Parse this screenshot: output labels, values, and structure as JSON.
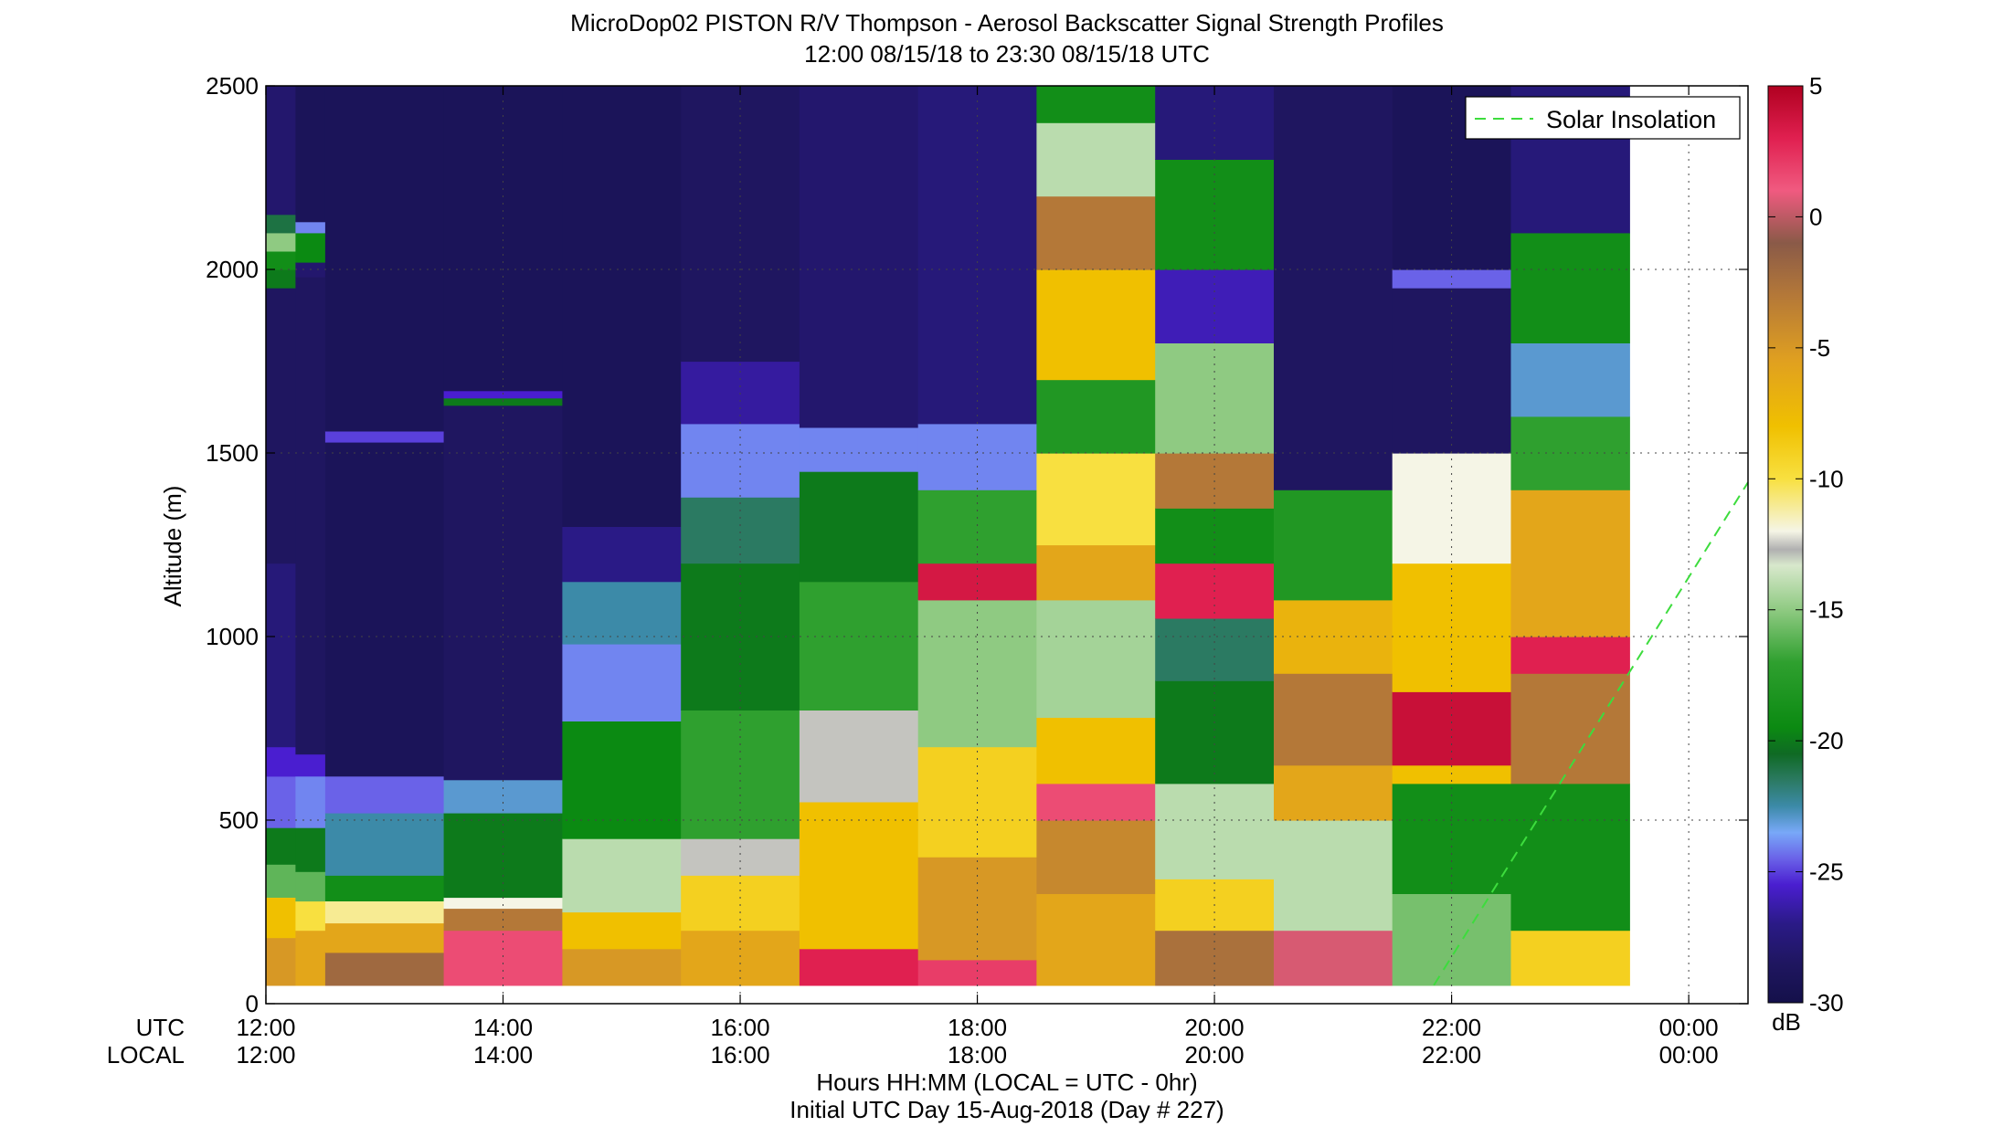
{
  "chart_data": {
    "type": "heatmap",
    "title": "MicroDop02 PISTON R/V Thompson - Aerosol Backscatter Signal Strength Profiles",
    "subtitle": "12:00 08/15/18 to 23:30 08/15/18  UTC",
    "ylabel": "Altitude (m)",
    "xlabel": "Hours HH:MM  (LOCAL = UTC - 0hr)",
    "xlabel2": "Initial UTC Day 15-Aug-2018 (Day # 227)",
    "x_row_labels": [
      "UTC",
      "LOCAL"
    ],
    "xlim": [
      12,
      24.5
    ],
    "ylim": [
      0,
      2500
    ],
    "grid": true,
    "x_ticks": [
      {
        "x": 12,
        "utc": "12:00",
        "local": "12:00"
      },
      {
        "x": 14,
        "utc": "14:00",
        "local": "14:00"
      },
      {
        "x": 16,
        "utc": "16:00",
        "local": "16:00"
      },
      {
        "x": 18,
        "utc": "18:00",
        "local": "18:00"
      },
      {
        "x": 20,
        "utc": "20:00",
        "local": "20:00"
      },
      {
        "x": 22,
        "utc": "22:00",
        "local": "22:00"
      },
      {
        "x": 24,
        "utc": "00:00",
        "local": "00:00"
      }
    ],
    "y_ticks": [
      0,
      500,
      1000,
      1500,
      2000,
      2500
    ],
    "colorbar": {
      "label": "dB",
      "range": [
        -30,
        5
      ],
      "ticks": [
        5,
        0,
        -5,
        -10,
        -15,
        -20,
        -25,
        -30
      ],
      "stops": [
        {
          "v": -30,
          "c": "#14104a"
        },
        {
          "v": -28.5,
          "c": "#1f1660"
        },
        {
          "v": -27,
          "c": "#2a1a86"
        },
        {
          "v": -25.5,
          "c": "#4a1ed0"
        },
        {
          "v": -24.5,
          "c": "#6a62e8"
        },
        {
          "v": -23.5,
          "c": "#78a8f8"
        },
        {
          "v": -22.5,
          "c": "#3c8aa8"
        },
        {
          "v": -21.5,
          "c": "#2b7a62"
        },
        {
          "v": -20.5,
          "c": "#0f6a24"
        },
        {
          "v": -19.5,
          "c": "#0b8a12"
        },
        {
          "v": -17,
          "c": "#2fa02f"
        },
        {
          "v": -15,
          "c": "#8fca82"
        },
        {
          "v": -13.3,
          "c": "#d8e8cc"
        },
        {
          "v": -12.7,
          "c": "#b0b0b0"
        },
        {
          "v": -12,
          "c": "#f5f5e6"
        },
        {
          "v": -10,
          "c": "#f8e040"
        },
        {
          "v": -8,
          "c": "#f0c000"
        },
        {
          "v": -5.5,
          "c": "#e0a020"
        },
        {
          "v": -3,
          "c": "#b47838"
        },
        {
          "v": -1,
          "c": "#8a5a48"
        },
        {
          "v": 1,
          "c": "#f05a80"
        },
        {
          "v": 3,
          "c": "#e02050"
        },
        {
          "v": 5,
          "c": "#b00020"
        }
      ]
    },
    "legend": {
      "label": "Solar Insolation",
      "position": "top-right",
      "color": "#3ddc3d"
    },
    "solar_insolation_line": [
      {
        "x": 21.85,
        "y": 50
      },
      {
        "x": 24.5,
        "y": 1420
      }
    ],
    "heatmap_columns": [
      {
        "t0": 12.0,
        "t1": 12.25,
        "segments": [
          [
            50,
            180,
            -5
          ],
          [
            180,
            290,
            -8
          ],
          [
            290,
            380,
            -16
          ],
          [
            380,
            480,
            -20
          ],
          [
            480,
            620,
            -24.5
          ],
          [
            620,
            700,
            -25.5
          ],
          [
            700,
            1200,
            -27.5
          ],
          [
            1200,
            1950,
            -28.5
          ],
          [
            1950,
            2000,
            -20
          ],
          [
            2000,
            2050,
            -19
          ],
          [
            2050,
            2100,
            -15
          ],
          [
            2100,
            2150,
            -21
          ],
          [
            2150,
            2500,
            -28
          ]
        ]
      },
      {
        "t0": 12.25,
        "t1": 12.5,
        "segments": [
          [
            50,
            200,
            -6
          ],
          [
            200,
            280,
            -10
          ],
          [
            280,
            360,
            -16
          ],
          [
            360,
            480,
            -20
          ],
          [
            480,
            620,
            -24
          ],
          [
            620,
            680,
            -25.5
          ],
          [
            680,
            1980,
            -28.5
          ],
          [
            1980,
            2020,
            -28
          ],
          [
            2020,
            2100,
            -19.5
          ],
          [
            2100,
            2130,
            -24
          ],
          [
            2130,
            2500,
            -29
          ]
        ]
      },
      {
        "t0": 12.5,
        "t1": 13.5,
        "segments": [
          [
            50,
            140,
            -2
          ],
          [
            140,
            220,
            -6
          ],
          [
            220,
            280,
            -11
          ],
          [
            280,
            350,
            -19
          ],
          [
            350,
            520,
            -22.5
          ],
          [
            520,
            620,
            -24.5
          ],
          [
            620,
            1530,
            -29
          ],
          [
            1530,
            1560,
            -25
          ],
          [
            1560,
            2500,
            -29
          ]
        ]
      },
      {
        "t0": 13.5,
        "t1": 14.5,
        "segments": [
          [
            50,
            200,
            1.5
          ],
          [
            200,
            260,
            -3
          ],
          [
            260,
            290,
            -12
          ],
          [
            290,
            520,
            -20
          ],
          [
            520,
            610,
            -23
          ],
          [
            610,
            1630,
            -28.5
          ],
          [
            1630,
            1650,
            -20
          ],
          [
            1650,
            1670,
            -25.5
          ],
          [
            1670,
            2500,
            -29
          ]
        ]
      },
      {
        "t0": 14.5,
        "t1": 15.5,
        "segments": [
          [
            50,
            150,
            -5
          ],
          [
            150,
            250,
            -8
          ],
          [
            250,
            450,
            -14
          ],
          [
            450,
            770,
            -19.5
          ],
          [
            770,
            980,
            -24
          ],
          [
            980,
            1150,
            -22.5
          ],
          [
            1150,
            1300,
            -27
          ],
          [
            1300,
            2500,
            -29
          ]
        ]
      },
      {
        "t0": 15.5,
        "t1": 16.5,
        "segments": [
          [
            50,
            200,
            -6
          ],
          [
            200,
            350,
            -9
          ],
          [
            350,
            450,
            -12.5
          ],
          [
            450,
            800,
            -17
          ],
          [
            800,
            1200,
            -20
          ],
          [
            1200,
            1380,
            -21.5
          ],
          [
            1380,
            1580,
            -24
          ],
          [
            1580,
            1750,
            -26.5
          ],
          [
            1750,
            2500,
            -28.5
          ]
        ]
      },
      {
        "t0": 16.5,
        "t1": 17.5,
        "segments": [
          [
            50,
            150,
            3
          ],
          [
            150,
            550,
            -8
          ],
          [
            550,
            800,
            -12.5
          ],
          [
            800,
            1150,
            -17
          ],
          [
            1150,
            1450,
            -20
          ],
          [
            1450,
            1570,
            -24
          ],
          [
            1570,
            2500,
            -28
          ]
        ]
      },
      {
        "t0": 17.5,
        "t1": 18.5,
        "segments": [
          [
            50,
            120,
            2
          ],
          [
            120,
            400,
            -5
          ],
          [
            400,
            700,
            -9
          ],
          [
            700,
            1100,
            -15
          ],
          [
            1100,
            1200,
            3.5
          ],
          [
            1200,
            1400,
            -17
          ],
          [
            1400,
            1580,
            -24
          ],
          [
            1580,
            2500,
            -27.5
          ]
        ]
      },
      {
        "t0": 18.5,
        "t1": 19.5,
        "segments": [
          [
            50,
            300,
            -6
          ],
          [
            300,
            500,
            -4
          ],
          [
            500,
            600,
            1.5
          ],
          [
            600,
            780,
            -8
          ],
          [
            780,
            1100,
            -14.5
          ],
          [
            1100,
            1250,
            -6
          ],
          [
            1250,
            1500,
            -10
          ],
          [
            1500,
            1700,
            -18
          ],
          [
            1700,
            2000,
            -8
          ],
          [
            2000,
            2200,
            -3
          ],
          [
            2200,
            2400,
            -14
          ],
          [
            2400,
            2500,
            -19
          ]
        ]
      },
      {
        "t0": 19.5,
        "t1": 20.5,
        "segments": [
          [
            50,
            200,
            -2.5
          ],
          [
            200,
            340,
            -9
          ],
          [
            340,
            600,
            -14
          ],
          [
            600,
            880,
            -20
          ],
          [
            880,
            1050,
            -21.5
          ],
          [
            1050,
            1200,
            3
          ],
          [
            1200,
            1350,
            -19
          ],
          [
            1350,
            1500,
            -3
          ],
          [
            1500,
            1800,
            -15
          ],
          [
            1800,
            2000,
            -26
          ],
          [
            2000,
            2300,
            -19
          ],
          [
            2300,
            2500,
            -27.5
          ]
        ]
      },
      {
        "t0": 20.5,
        "t1": 21.5,
        "segments": [
          [
            50,
            200,
            0.5
          ],
          [
            200,
            500,
            -14
          ],
          [
            500,
            650,
            -6
          ],
          [
            650,
            900,
            -3
          ],
          [
            900,
            1100,
            -7
          ],
          [
            1100,
            1400,
            -18
          ],
          [
            1400,
            2500,
            -28.5
          ]
        ]
      },
      {
        "t0": 21.5,
        "t1": 22.5,
        "segments": [
          [
            50,
            300,
            -15.5
          ],
          [
            300,
            600,
            -19
          ],
          [
            600,
            650,
            -8
          ],
          [
            650,
            850,
            4
          ],
          [
            850,
            1200,
            -8
          ],
          [
            1200,
            1500,
            -12
          ],
          [
            1500,
            1950,
            -28.5
          ],
          [
            1950,
            2000,
            -24.5
          ],
          [
            2000,
            2500,
            -29
          ]
        ]
      },
      {
        "t0": 22.5,
        "t1": 23.5,
        "segments": [
          [
            50,
            200,
            -9
          ],
          [
            200,
            600,
            -19
          ],
          [
            600,
            900,
            -3
          ],
          [
            900,
            1000,
            3
          ],
          [
            1000,
            1400,
            -6
          ],
          [
            1400,
            1600,
            -17
          ],
          [
            1600,
            1800,
            -23
          ],
          [
            1800,
            2100,
            -19
          ],
          [
            2100,
            2500,
            -27.5
          ]
        ]
      }
    ]
  }
}
